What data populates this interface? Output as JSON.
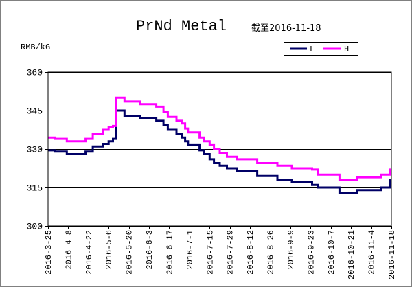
{
  "chart_data": {
    "type": "line",
    "title": "PrNd Metal",
    "subtitle": "截至2016-11-18",
    "xlabel": "",
    "ylabel": "RMB/kG",
    "ylim": [
      300,
      360
    ],
    "y_ticks": [
      300,
      315,
      330,
      345,
      360
    ],
    "xlim": [
      "2016-3-25",
      "2016-11-18"
    ],
    "x_ticks": [
      "2016-3-25",
      "2016-4-8",
      "2016-4-22",
      "2016-5-6",
      "2016-5-20",
      "2016-6-3",
      "2016-6-17",
      "2016-7-1",
      "2016-7-15",
      "2016-7-29",
      "2016-8-12",
      "2016-8-26",
      "2016-9-9",
      "2016-9-23",
      "2016-10-7",
      "2016-10-21",
      "2016-11-4",
      "2016-11-18"
    ],
    "grid": true,
    "legend": {
      "position": "top-right"
    },
    "x": [
      "2016-3-25",
      "2016-3-30",
      "2016-4-7",
      "2016-4-20",
      "2016-4-25",
      "2016-5-2",
      "2016-5-6",
      "2016-5-9",
      "2016-5-11",
      "2016-5-17",
      "2016-5-28",
      "2016-6-8",
      "2016-6-13",
      "2016-6-16",
      "2016-6-22",
      "2016-6-26",
      "2016-6-28",
      "2016-6-30",
      "2016-7-8",
      "2016-7-11",
      "2016-7-15",
      "2016-7-18",
      "2016-7-22",
      "2016-7-27",
      "2016-8-3",
      "2016-8-17",
      "2016-8-31",
      "2016-9-10",
      "2016-9-24",
      "2016-9-28",
      "2016-10-13",
      "2016-10-25",
      "2016-11-11",
      "2016-11-17",
      "2016-11-18"
    ],
    "series": [
      {
        "name": "L",
        "color": "#000066",
        "values": [
          329.5,
          329,
          328,
          329,
          331,
          332,
          333,
          334,
          345,
          343,
          342,
          341,
          339.5,
          337.5,
          336,
          334.5,
          333,
          331.5,
          329.5,
          328,
          326,
          324.5,
          323.5,
          322.5,
          321.5,
          319.5,
          318,
          317,
          316,
          315,
          313,
          314,
          315,
          318,
          318
        ]
      },
      {
        "name": "H",
        "color": "#ff00ff",
        "values": [
          334.5,
          334,
          333,
          334,
          336,
          337.5,
          338.5,
          339,
          350,
          348.5,
          347.5,
          346.5,
          344.5,
          342.5,
          341,
          340,
          338,
          336.5,
          334.5,
          333,
          331.5,
          330,
          328.5,
          327,
          326,
          324.5,
          323.5,
          322.5,
          322,
          320,
          318,
          319,
          320,
          322,
          322
        ]
      }
    ]
  }
}
